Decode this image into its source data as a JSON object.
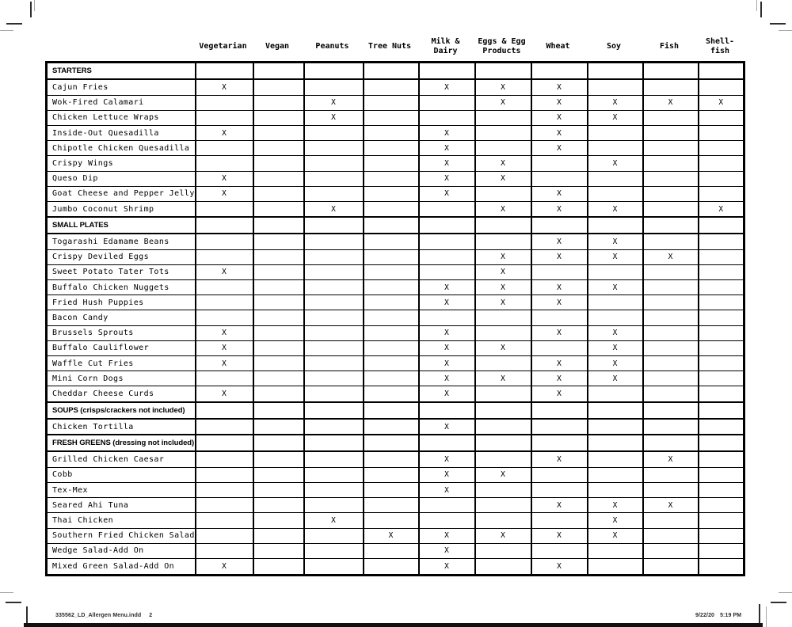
{
  "page": {
    "footer_left": "335562_LD_Allergen Menu.indd",
    "footer_page_number": "2",
    "footer_date": "9/22/20",
    "footer_time": "5:19 PM"
  },
  "colors": {
    "ink": "#000000",
    "paper": "#ffffff",
    "crop_mark_gray": "#a8a8a8"
  },
  "table": {
    "mark": "X",
    "columns": [
      "Vegetarian",
      "Vegan",
      "Peanuts",
      "Tree Nuts",
      "Milk &\nDairy",
      "Eggs & Egg\nProducts",
      "Wheat",
      "Soy",
      "Fish",
      "Shell-\nfish"
    ],
    "rows": [
      {
        "type": "section",
        "label": "STARTERS",
        "marks": [
          0,
          0,
          0,
          0,
          0,
          0,
          0,
          0,
          0,
          0
        ]
      },
      {
        "type": "item",
        "label": "Cajun Fries",
        "marks": [
          1,
          0,
          0,
          0,
          1,
          1,
          1,
          0,
          0,
          0
        ]
      },
      {
        "type": "item",
        "label": "Wok-Fired Calamari",
        "marks": [
          0,
          0,
          1,
          0,
          0,
          1,
          1,
          1,
          1,
          1
        ]
      },
      {
        "type": "item",
        "label": "Chicken Lettuce Wraps",
        "marks": [
          0,
          0,
          1,
          0,
          0,
          0,
          1,
          1,
          0,
          0
        ]
      },
      {
        "type": "item",
        "label": "Inside-Out Quesadilla",
        "marks": [
          1,
          0,
          0,
          0,
          1,
          0,
          1,
          0,
          0,
          0
        ]
      },
      {
        "type": "item",
        "label": "Chipotle Chicken Quesadilla",
        "marks": [
          0,
          0,
          0,
          0,
          1,
          0,
          1,
          0,
          0,
          0
        ]
      },
      {
        "type": "item",
        "label": "Crispy Wings",
        "marks": [
          0,
          0,
          0,
          0,
          1,
          1,
          0,
          1,
          0,
          0
        ]
      },
      {
        "type": "item",
        "label": "Queso Dip",
        "marks": [
          1,
          0,
          0,
          0,
          1,
          1,
          0,
          0,
          0,
          0
        ]
      },
      {
        "type": "item",
        "label": "Goat Cheese and Pepper Jelly",
        "marks": [
          1,
          0,
          0,
          0,
          1,
          0,
          1,
          0,
          0,
          0
        ]
      },
      {
        "type": "item",
        "label": "Jumbo Coconut Shrimp",
        "marks": [
          0,
          0,
          1,
          0,
          0,
          1,
          1,
          1,
          0,
          1
        ]
      },
      {
        "type": "section",
        "label": "SMALL PLATES",
        "marks": [
          0,
          0,
          0,
          0,
          0,
          0,
          0,
          0,
          0,
          0
        ]
      },
      {
        "type": "item",
        "label": "Togarashi Edamame Beans",
        "marks": [
          0,
          0,
          0,
          0,
          0,
          0,
          1,
          1,
          0,
          0
        ]
      },
      {
        "type": "item",
        "label": "Crispy Deviled Eggs",
        "marks": [
          0,
          0,
          0,
          0,
          0,
          1,
          1,
          1,
          1,
          0
        ]
      },
      {
        "type": "item",
        "label": "Sweet Potato Tater Tots",
        "marks": [
          1,
          0,
          0,
          0,
          0,
          1,
          0,
          0,
          0,
          0
        ]
      },
      {
        "type": "item",
        "label": "Buffalo Chicken Nuggets",
        "marks": [
          0,
          0,
          0,
          0,
          1,
          1,
          1,
          1,
          0,
          0
        ]
      },
      {
        "type": "item",
        "label": "Fried Hush Puppies",
        "marks": [
          0,
          0,
          0,
          0,
          1,
          1,
          1,
          0,
          0,
          0
        ]
      },
      {
        "type": "item",
        "label": "Bacon Candy",
        "marks": [
          0,
          0,
          0,
          0,
          0,
          0,
          0,
          0,
          0,
          0
        ]
      },
      {
        "type": "item",
        "label": "Brussels Sprouts",
        "marks": [
          1,
          0,
          0,
          0,
          1,
          0,
          1,
          1,
          0,
          0
        ]
      },
      {
        "type": "item",
        "label": "Buffalo Cauliflower",
        "marks": [
          1,
          0,
          0,
          0,
          1,
          1,
          0,
          1,
          0,
          0
        ]
      },
      {
        "type": "item",
        "label": "Waffle Cut Fries",
        "marks": [
          1,
          0,
          0,
          0,
          1,
          0,
          1,
          1,
          0,
          0
        ]
      },
      {
        "type": "item",
        "label": "Mini Corn Dogs",
        "marks": [
          0,
          0,
          0,
          0,
          1,
          1,
          1,
          1,
          0,
          0
        ]
      },
      {
        "type": "item",
        "label": "Cheddar Cheese Curds",
        "marks": [
          1,
          0,
          0,
          0,
          1,
          0,
          1,
          0,
          0,
          0
        ]
      },
      {
        "type": "section",
        "label": "SOUPS (crisps/crackers not included)",
        "marks": [
          0,
          0,
          0,
          0,
          0,
          0,
          0,
          0,
          0,
          0
        ]
      },
      {
        "type": "item",
        "label": "Chicken Tortilla",
        "marks": [
          0,
          0,
          0,
          0,
          1,
          0,
          0,
          0,
          0,
          0
        ]
      },
      {
        "type": "section",
        "label": "FRESH GREENS (dressing not included)",
        "marks": [
          0,
          0,
          0,
          0,
          0,
          0,
          0,
          0,
          0,
          0
        ]
      },
      {
        "type": "item",
        "label": "Grilled Chicken Caesar",
        "marks": [
          0,
          0,
          0,
          0,
          1,
          0,
          1,
          0,
          1,
          0
        ]
      },
      {
        "type": "item",
        "label": "Cobb",
        "marks": [
          0,
          0,
          0,
          0,
          1,
          1,
          0,
          0,
          0,
          0
        ]
      },
      {
        "type": "item",
        "label": "Tex-Mex",
        "marks": [
          0,
          0,
          0,
          0,
          1,
          0,
          0,
          0,
          0,
          0
        ]
      },
      {
        "type": "item",
        "label": "Seared Ahi Tuna",
        "marks": [
          0,
          0,
          0,
          0,
          0,
          0,
          1,
          1,
          1,
          0
        ]
      },
      {
        "type": "item",
        "label": "Thai Chicken",
        "marks": [
          0,
          0,
          1,
          0,
          0,
          0,
          0,
          1,
          0,
          0
        ]
      },
      {
        "type": "item",
        "label": "Southern Fried Chicken Salad",
        "marks": [
          0,
          0,
          0,
          1,
          1,
          1,
          1,
          1,
          0,
          0
        ]
      },
      {
        "type": "item",
        "label": "Wedge Salad-Add On",
        "marks": [
          0,
          0,
          0,
          0,
          1,
          0,
          0,
          0,
          0,
          0
        ]
      },
      {
        "type": "item",
        "label": "Mixed Green Salad-Add On",
        "marks": [
          1,
          0,
          0,
          0,
          1,
          0,
          1,
          0,
          0,
          0
        ]
      }
    ]
  }
}
